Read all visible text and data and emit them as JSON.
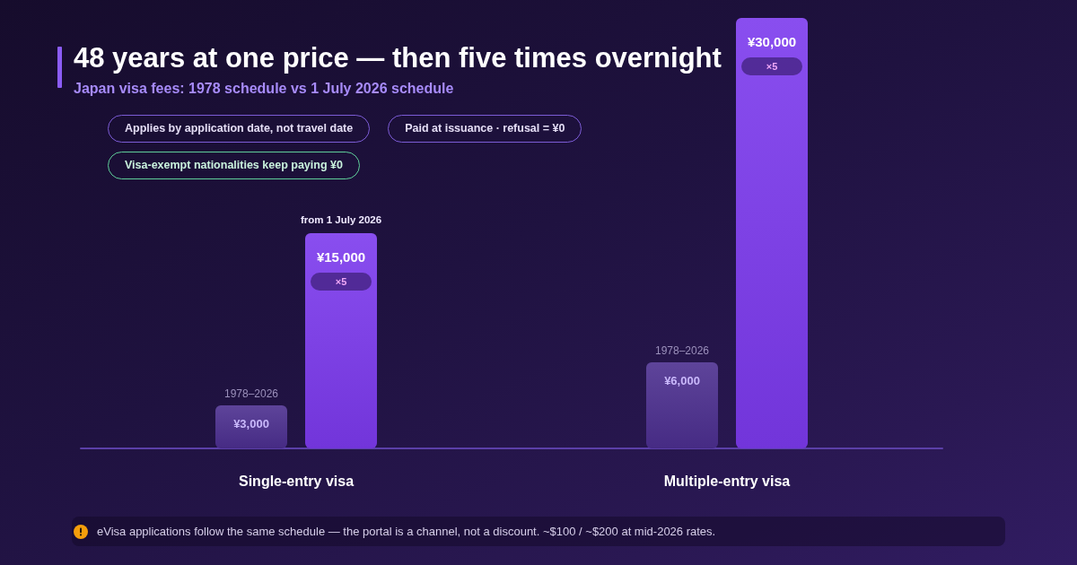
{
  "chart_data": {
    "type": "bar",
    "title": "48 years at one price — then five times overnight",
    "subtitle": "Japan visa fees: 1978 schedule vs 1 July 2026 schedule",
    "categories": [
      "Single-entry visa",
      "Multiple-entry visa"
    ],
    "series": [
      {
        "name": "1978–2026",
        "color": "#4c2f8f",
        "values": [
          3000,
          6000
        ],
        "value_labels": [
          "¥3,000",
          "¥6,000"
        ]
      },
      {
        "name": "from 1 July 2026",
        "color": "#7c3aed",
        "values": [
          15000,
          30000
        ],
        "value_labels": [
          "¥15,000",
          "¥30,000"
        ]
      }
    ],
    "annotations": [
      "Applies by application date, not travel date",
      "Paid at issuance · refusal = ¥0",
      "Visa-exempt nationalities keep paying ¥0",
      "×5",
      "×5",
      "eVisa applications follow the same schedule — the portal is a channel, not a discount. ~$100 / ~$200 at mid-2026 rates."
    ],
    "tick_labels": "x"
  }
}
